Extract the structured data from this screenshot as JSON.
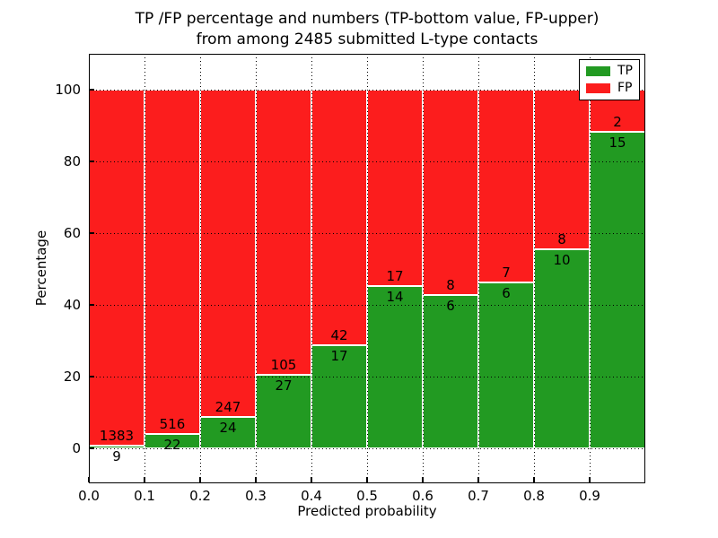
{
  "figure": {
    "title_line1": "TP /FP percentage and numbers (TP-bottom value, FP-upper)",
    "title_line2": "from among 2485 submitted L-type contacts",
    "xlabel": "Predicted probability",
    "ylabel": "Percentage"
  },
  "legend": {
    "entries": [
      {
        "label": "TP",
        "color": "#229a22"
      },
      {
        "label": "FP",
        "color": "#fc1d1d"
      }
    ]
  },
  "chart_data": {
    "type": "bar",
    "stacked": true,
    "normalized_to_percent": true,
    "title": "TP /FP percentage and numbers (TP-bottom value, FP-upper) from among 2485 submitted L-type contacts",
    "xlabel": "Predicted probability",
    "ylabel": "Percentage",
    "xlim": [
      0.0,
      1.0
    ],
    "ylim": [
      -10,
      110
    ],
    "bin_width": 0.1,
    "grid": true,
    "grid_style": "dotted",
    "legend_position": "upper right",
    "total_contacts": 2485,
    "categories": [
      "0.0-0.1",
      "0.1-0.2",
      "0.2-0.3",
      "0.3-0.4",
      "0.4-0.5",
      "0.5-0.6",
      "0.6-0.7",
      "0.7-0.8",
      "0.8-0.9",
      "0.9-1.0"
    ],
    "series": [
      {
        "name": "TP",
        "color": "#229a22",
        "counts": [
          9,
          22,
          24,
          27,
          17,
          14,
          6,
          6,
          10,
          15
        ]
      },
      {
        "name": "FP",
        "color": "#fc1d1d",
        "counts": [
          1383,
          516,
          247,
          105,
          42,
          17,
          8,
          7,
          8,
          2
        ]
      }
    ],
    "tp_percent_of_bin": [
      0.65,
      4.09,
      8.86,
      20.45,
      28.81,
      45.16,
      42.86,
      46.15,
      55.56,
      88.24
    ],
    "x_ticks": [
      "0.0",
      "0.1",
      "0.2",
      "0.3",
      "0.4",
      "0.5",
      "0.6",
      "0.7",
      "0.8",
      "0.9"
    ],
    "y_ticks": [
      "0",
      "20",
      "40",
      "60",
      "80",
      "100"
    ]
  }
}
